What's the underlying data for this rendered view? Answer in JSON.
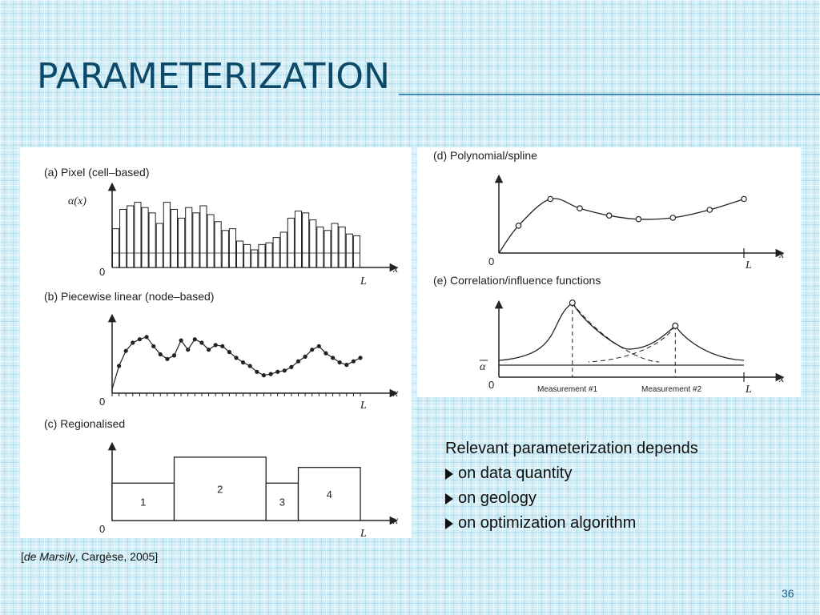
{
  "slide": {
    "title": "PARAMETERIZATION",
    "page_number": "36"
  },
  "citation": {
    "open": "[",
    "author": "de Marsily",
    "rest": ", Cargèse, 2005]"
  },
  "bullets": {
    "intro": "Relevant parameterization depends",
    "items": [
      "on data quantity",
      "on geology",
      "on optimization algorithm"
    ]
  },
  "figure_left": {
    "panel_a": {
      "label": "(a)  Pixel (cell–based)",
      "ylabel": "α(x)",
      "origin": "0",
      "x_end": "L",
      "x_axis": "x",
      "values": [
        22,
        33,
        35,
        37,
        34,
        31,
        25,
        37,
        33,
        28,
        34,
        31,
        35,
        30,
        26,
        21,
        22,
        15,
        13,
        10,
        13,
        14,
        17,
        20,
        28,
        32,
        31,
        27,
        23,
        21,
        25,
        23,
        19,
        18
      ]
    },
    "panel_b": {
      "label": "(b)  Piecewise linear (node–based)",
      "origin": "0",
      "x_end": "L",
      "x_axis": "x",
      "values": [
        0,
        20,
        33,
        40,
        43,
        45,
        37,
        30,
        26,
        29,
        42,
        34,
        43,
        40,
        34,
        38,
        37,
        32,
        27,
        23,
        20,
        15,
        12,
        13,
        15,
        16,
        19,
        24,
        28,
        34,
        37,
        31,
        27,
        23,
        21,
        24,
        27
      ]
    },
    "panel_c": {
      "label": "(c)  Regionalised",
      "origin": "0",
      "x_end": "L",
      "x_axis": "x",
      "regions": [
        {
          "name": "1",
          "value": 0.55,
          "from": 0,
          "to": 0.25
        },
        {
          "name": "2",
          "value": 0.93,
          "from": 0.25,
          "to": 0.62
        },
        {
          "name": "3",
          "value": 0.55,
          "from": 0.62,
          "to": 0.75
        },
        {
          "name": "4",
          "value": 0.78,
          "from": 0.75,
          "to": 1.0
        }
      ]
    }
  },
  "figure_right": {
    "panel_d": {
      "label": "(d)  Polynomial/spline",
      "origin": "0",
      "x_end": "L",
      "x_axis": "x",
      "nodes": [
        [
          0.08,
          0.38
        ],
        [
          0.21,
          0.75
        ],
        [
          0.33,
          0.62
        ],
        [
          0.45,
          0.52
        ],
        [
          0.57,
          0.47
        ],
        [
          0.71,
          0.49
        ],
        [
          0.86,
          0.6
        ],
        [
          1.0,
          0.75
        ]
      ]
    },
    "panel_e": {
      "label": "(e)  Correlation/influence functions",
      "origin": "0",
      "x_end": "L",
      "x_axis": "x",
      "alpha_bar": "α",
      "measurement_1": "Measurement #1",
      "measurement_2": "Measurement #2",
      "peaks": [
        [
          0.3,
          0.95
        ],
        [
          0.72,
          0.6
        ]
      ]
    }
  },
  "colors": {
    "title": "#0d4a6a",
    "rule": "#3d8cb4",
    "ink": "#222222",
    "page_number": "#1c5f86"
  }
}
